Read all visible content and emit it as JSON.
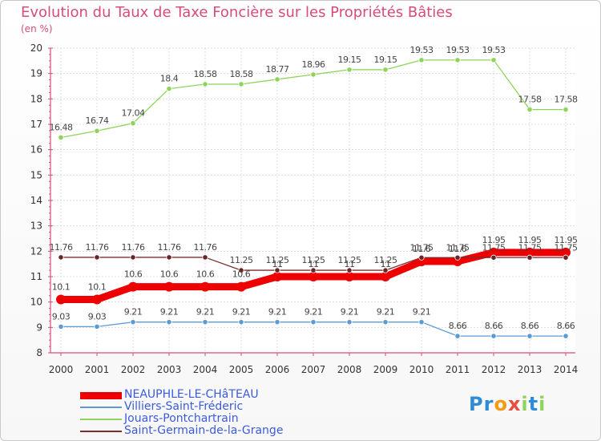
{
  "title": "Evolution du Taux de Taxe Foncière sur les Propriétés Bâties",
  "subtitle": "(en %)",
  "chart_data": {
    "type": "line",
    "title": "Evolution du Taux de Taxe Foncière sur les Propriétés Bâties",
    "ylabel": "(en %)",
    "xlabel": "",
    "ylim": [
      8,
      20
    ],
    "yticks": [
      "8",
      "9",
      "10",
      "11",
      "12",
      "13",
      "14",
      "15",
      "16",
      "17",
      "18",
      "19",
      "20"
    ],
    "x": [
      "2000",
      "2001",
      "2002",
      "2003",
      "2004",
      "2005",
      "2006",
      "2007",
      "2008",
      "2009",
      "2010",
      "2011",
      "2012",
      "2013",
      "2014"
    ],
    "grid": true,
    "legend_position": "bottom-left",
    "series": [
      {
        "name": "NEAUPHLE-LE-CHâTEAU",
        "color": "#ee0000",
        "values": [
          10.1,
          10.1,
          10.6,
          10.6,
          10.6,
          10.6,
          11,
          11,
          11,
          11,
          11.6,
          11.6,
          11.95,
          11.95,
          11.95
        ],
        "labels": [
          "10.1",
          "10.1",
          "10.6",
          "10.6",
          "10.6",
          "10.6",
          "11",
          "11",
          "11",
          "11",
          "11.6",
          "11.6",
          "11.95",
          "11.95",
          "11.95"
        ]
      },
      {
        "name": "Villiers-Saint-Fréderic",
        "color": "#5b9bd5",
        "values": [
          9.03,
          9.03,
          9.21,
          9.21,
          9.21,
          9.21,
          9.21,
          9.21,
          9.21,
          9.21,
          9.21,
          8.66,
          8.66,
          8.66,
          8.66
        ],
        "labels": [
          "9.03",
          "9.03",
          "9.21",
          "9.21",
          "9.21",
          "9.21",
          "9.21",
          "9.21",
          "9.21",
          "9.21",
          "9.21",
          "8.66",
          "8.66",
          "8.66",
          "8.66"
        ]
      },
      {
        "name": "Jouars-Pontchartrain",
        "color": "#8ed45a",
        "values": [
          16.48,
          16.74,
          17.04,
          18.4,
          18.58,
          18.58,
          18.77,
          18.96,
          19.15,
          19.15,
          19.53,
          19.53,
          19.53,
          17.58,
          17.58
        ],
        "labels": [
          "16.48",
          "16.74",
          "17.04",
          "18.4",
          "18.58",
          "18.58",
          "18.77",
          "18.96",
          "19.15",
          "19.15",
          "19.53",
          "19.53",
          "19.53",
          "17.58",
          "17.58"
        ]
      },
      {
        "name": "Saint-Germain-de-la-Grange",
        "color": "#7a2e2e",
        "values": [
          11.76,
          11.76,
          11.76,
          11.76,
          11.76,
          11.25,
          11.25,
          11.25,
          11.25,
          11.25,
          11.75,
          11.75,
          11.75,
          11.75,
          11.75
        ],
        "labels": [
          "11.76",
          "11.76",
          "11.76",
          "11.76",
          "11.76",
          "11.25",
          "11.25",
          "11.25",
          "11.25",
          "11.25",
          "11.75",
          "11.75",
          "11.75",
          "11.75",
          "11.75"
        ]
      }
    ]
  },
  "legend": [
    {
      "label": "NEAUPHLE-LE-CHâTEAU",
      "color": "#ee0000",
      "text_color": "#3b5bdb"
    },
    {
      "label": "Villiers-Saint-Fréderic",
      "color": "#5b9bd5",
      "text_color": "#3b5bdb"
    },
    {
      "label": "Jouars-Pontchartrain",
      "color": "#8ed45a",
      "text_color": "#3b5bdb"
    },
    {
      "label": "Saint-Germain-de-la-Grange",
      "color": "#7a2e2e",
      "text_color": "#3b5bdb"
    }
  ],
  "logo": {
    "letters": [
      "P",
      "r",
      "o",
      "x",
      "i",
      "t",
      "i"
    ],
    "colors": [
      "#2e8bd6",
      "#2e8bd6",
      "#f39c12",
      "#e74c3c",
      "#8ed45a",
      "#2e8bd6",
      "#8ed45a"
    ]
  }
}
